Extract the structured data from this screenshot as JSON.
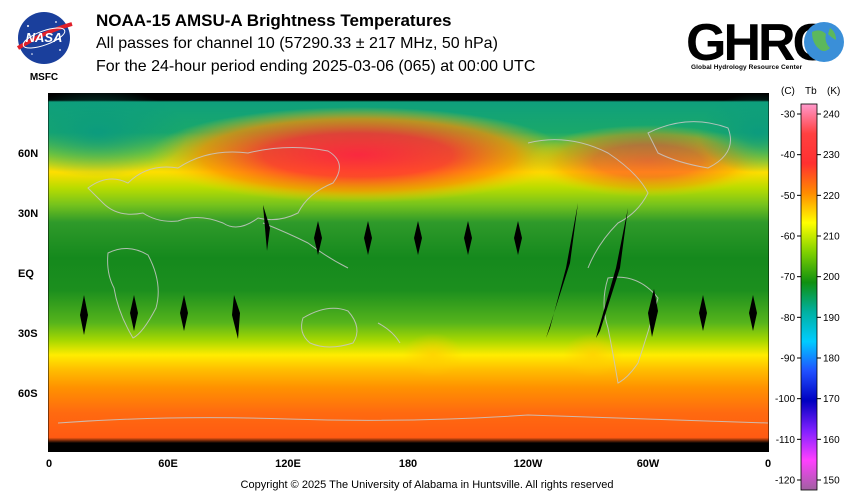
{
  "header": {
    "title": "NOAA-15 AMSU-A Brightness Temperatures",
    "subtitle_line1": "All passes for channel 10 (57290.33 ± 217 MHz, 50 hPa)",
    "subtitle_line2": "For the 24-hour period ending 2025-03-06 (065) at 00:00 UTC"
  },
  "logos": {
    "nasa_text": "NASA",
    "nasa_caption": "MSFC",
    "ghrc_text": "GHRC",
    "ghrc_caption": "Global Hydrology Resource Center"
  },
  "map": {
    "lat_labels": [
      "60N",
      "30N",
      "EQ",
      "30S",
      "60S"
    ],
    "lon_labels": [
      "0",
      "60E",
      "120E",
      "180",
      "120W",
      "60W",
      "0"
    ],
    "lat_values": [
      60,
      30,
      0,
      -30,
      -60
    ],
    "lon_values": [
      0,
      60,
      120,
      180,
      240,
      300,
      360
    ]
  },
  "colorbar": {
    "label_c": "(C)",
    "label_tb": "Tb",
    "label_k": "(K)",
    "celsius_ticks": [
      "-30",
      "-40",
      "-50",
      "-60",
      "-70",
      "-80",
      "-90",
      "-100",
      "-110",
      "-120"
    ],
    "kelvin_ticks": [
      "240",
      "230",
      "220",
      "210",
      "200",
      "190",
      "180",
      "170",
      "160",
      "150"
    ],
    "stops": [
      "#ff99cc",
      "#ff4040",
      "#ff3030",
      "#ff8c00",
      "#ffff00",
      "#7ed000",
      "#109010",
      "#00b0a0",
      "#00ccff",
      "#2050ff",
      "#0000c0",
      "#8020ff",
      "#ff40ff",
      "#a060a0"
    ]
  },
  "footer": {
    "copyright": "Copyright © 2025 The University of Alabama in Huntsville.  All rights reserved"
  }
}
